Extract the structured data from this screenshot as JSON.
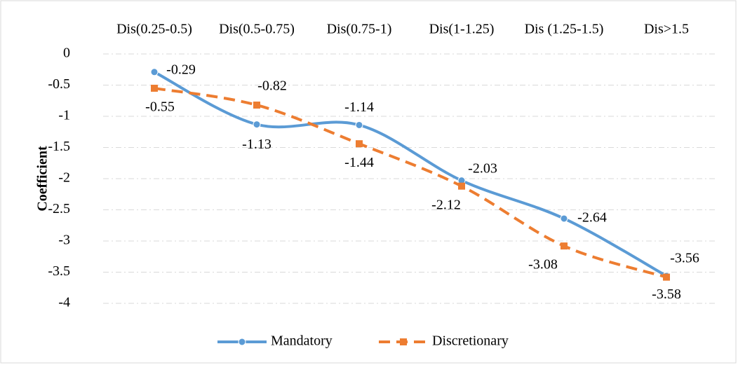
{
  "chart_data": {
    "type": "line",
    "categories": [
      "Dis(0.25-0.5)",
      "Dis(0.5-0.75)",
      "Dis(0.75-1)",
      "Dis(1-1.25)",
      "Dis (1.25-1.5)",
      "Dis>1.5"
    ],
    "series": [
      {
        "name": "Mandatory",
        "color": "#5b9bd5",
        "values": [
          -0.29,
          -1.13,
          -1.14,
          -2.03,
          -2.64,
          -3.56
        ]
      },
      {
        "name": "Discretionary",
        "color": "#ed7d31",
        "values": [
          -0.55,
          -0.82,
          -1.44,
          -2.12,
          -3.08,
          -3.58
        ]
      }
    ],
    "y_label": "Coefficient",
    "ylim": [
      -4,
      0
    ],
    "yticks": [
      0,
      -0.5,
      -1,
      -1.5,
      -2,
      -2.5,
      -3,
      -3.5,
      -4
    ],
    "grid": true,
    "legend": "bottom",
    "smooth": true
  }
}
